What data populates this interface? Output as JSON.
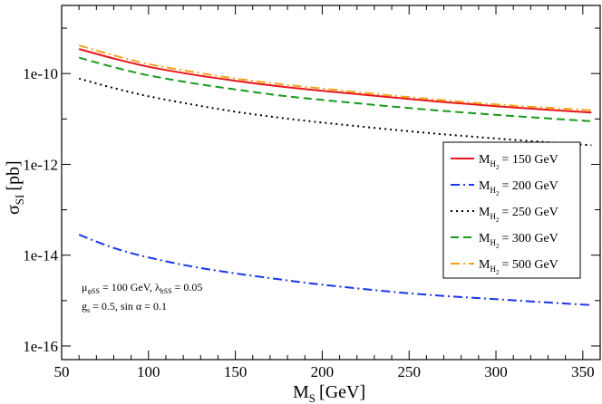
{
  "chart_data": {
    "type": "line",
    "xlabel": {
      "main": "M",
      "sub": "S",
      "unit": "[GeV]"
    },
    "ylabel": {
      "main": "σ",
      "sub": "SI",
      "unit": "[pb]"
    },
    "x_scale": "linear",
    "y_scale": "log",
    "xlim": [
      50,
      360
    ],
    "ylim_log10": [
      -16.3,
      -8.5
    ],
    "x_ticks": [
      50,
      100,
      150,
      200,
      250,
      300,
      350
    ],
    "y_ticks": [
      {
        "log10": -10,
        "label": "1e-10"
      },
      {
        "log10": -12,
        "label": "1e-12"
      },
      {
        "log10": -14,
        "label": "1e-14"
      },
      {
        "log10": -16,
        "label": "1e-16"
      }
    ],
    "grid": false,
    "legend_position": "right",
    "series": [
      {
        "name_main": "M",
        "name_sub": "H",
        "name_subsub": "2",
        "name_value": "= 150 GeV",
        "color": "#e8151e",
        "style": "solid",
        "x": [
          60,
          80,
          100,
          125,
          150,
          175,
          200,
          250,
          300,
          355
        ],
        "y_log10": [
          -9.46,
          -9.67,
          -9.85,
          -10.02,
          -10.16,
          -10.28,
          -10.38,
          -10.56,
          -10.72,
          -10.86
        ]
      },
      {
        "name_main": "M",
        "name_sub": "H",
        "name_subsub": "2",
        "name_value": "= 200 GeV",
        "color": "#1a36e8",
        "style": "dashdot",
        "x": [
          60,
          80,
          100,
          125,
          150,
          175,
          200,
          250,
          300,
          355
        ],
        "y_log10": [
          -13.55,
          -13.84,
          -14.05,
          -14.25,
          -14.4,
          -14.53,
          -14.65,
          -14.84,
          -14.97,
          -15.1
        ]
      },
      {
        "name_main": "M",
        "name_sub": "H",
        "name_subsub": "2",
        "name_value": "= 250 GeV",
        "color": "#000000",
        "style": "dotted",
        "x": [
          60,
          80,
          100,
          125,
          150,
          175,
          200,
          250,
          300,
          355
        ],
        "y_log10": [
          -10.11,
          -10.32,
          -10.5,
          -10.68,
          -10.84,
          -10.97,
          -11.08,
          -11.27,
          -11.43,
          -11.58
        ]
      },
      {
        "name_main": "M",
        "name_sub": "H",
        "name_subsub": "2",
        "name_value": "= 300 GeV",
        "color": "#1a9a1a",
        "style": "dashed",
        "x": [
          60,
          80,
          100,
          125,
          150,
          175,
          200,
          250,
          300,
          355
        ],
        "y_log10": [
          -9.65,
          -9.86,
          -10.04,
          -10.21,
          -10.35,
          -10.48,
          -10.58,
          -10.76,
          -10.91,
          -11.05
        ]
      },
      {
        "name_main": "M",
        "name_sub": "H",
        "name_subsub": "2",
        "name_value": "= 500 GeV",
        "color": "#f5a21a",
        "style": "dashdot",
        "x": [
          60,
          80,
          100,
          125,
          150,
          175,
          200,
          250,
          300,
          355
        ],
        "y_log10": [
          -9.38,
          -9.6,
          -9.79,
          -9.96,
          -10.11,
          -10.23,
          -10.33,
          -10.52,
          -10.68,
          -10.81
        ]
      }
    ],
    "annotations": [
      {
        "parts": [
          {
            "t": "μ",
            "style": "main"
          },
          {
            "t": "φSS",
            "style": "sub"
          },
          {
            "t": " = 100 GeV, ",
            "style": "main"
          },
          {
            "t": "λ",
            "style": "main"
          },
          {
            "t": "hSS",
            "style": "sub"
          },
          {
            "t": " = 0.05",
            "style": "main"
          }
        ]
      },
      {
        "parts": [
          {
            "t": "g",
            "style": "main"
          },
          {
            "t": "s",
            "style": "sub"
          },
          {
            "t": " = 0.5, sin α = 0.1",
            "style": "main"
          }
        ]
      }
    ]
  }
}
